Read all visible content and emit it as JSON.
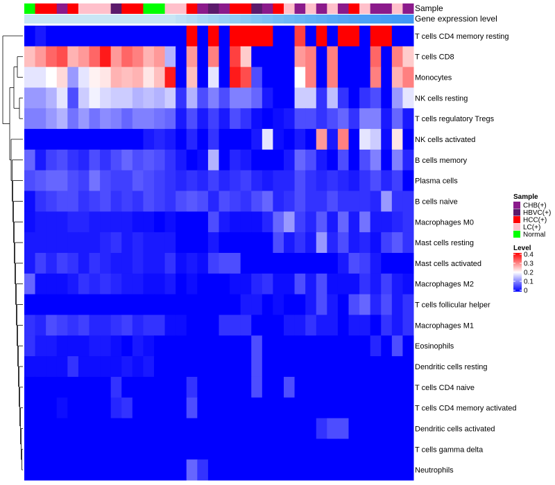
{
  "chart_data": {
    "type": "heatmap",
    "title": "",
    "annotation_labels": {
      "sample": "Sample",
      "gene_expression": "Gene expression level"
    },
    "sample_groups": [
      "CHB(+)",
      "HBVC(+)",
      "HCC(+)",
      "LC(+)",
      "Normal"
    ],
    "group_colors": {
      "CHB(+)": "#8B1A8B",
      "HBVC(+)": "#5B1A6B",
      "HCC(+)": "#FF0000",
      "LC(+)": "#FFC0CB",
      "Normal": "#00FF00"
    },
    "columns_sample": [
      "Normal",
      "HCC(+)",
      "HCC(+)",
      "CHB(+)",
      "HCC(+)",
      "LC(+)",
      "LC(+)",
      "LC(+)",
      "HBVC(+)",
      "HCC(+)",
      "HCC(+)",
      "Normal",
      "Normal",
      "LC(+)",
      "LC(+)",
      "HCC(+)",
      "CHB(+)",
      "HBVC(+)",
      "CHB(+)",
      "HCC(+)",
      "HCC(+)",
      "HBVC(+)",
      "CHB(+)",
      "HCC(+)",
      "LC(+)",
      "CHB(+)",
      "LC(+)",
      "CHB(+)",
      "LC(+)",
      "CHB(+)",
      "HCC(+)",
      "LC(+)",
      "CHB(+)",
      "CHB(+)",
      "LC(+)",
      "CHB(+)"
    ],
    "expression_colors": [
      "#C8E6F5",
      "#C8E6F5",
      "#C8E6F5",
      "#C8E6F5",
      "#C8E6F5",
      "#C8E6F5",
      "#C8E6F5",
      "#C8E6F5",
      "#C8E6F5",
      "#C8E6F5",
      "#C8E6F5",
      "#C8E6F5",
      "#C8E6F5",
      "#C8E6F5",
      "#BFE0F5",
      "#B5DCF5",
      "#AAD8F5",
      "#A2D4F5",
      "#9AD0F5",
      "#92CCF5",
      "#8AC8F5",
      "#82C4F5",
      "#7BC0F5",
      "#74BCF5",
      "#6EB8F5",
      "#68B4F5",
      "#62B0F5",
      "#5DACF5",
      "#58A8F5",
      "#54A4F5",
      "#50A2F5",
      "#4CA0F5",
      "#489EF5",
      "#459CF5",
      "#429AF5",
      "#4098F5"
    ],
    "rows": [
      "T cells CD4 memory resting",
      "T cells CD8",
      "Monocytes",
      "NK cells resting",
      "T cells regulatory  Tregs",
      "NK cells activated",
      "B cells memory",
      "Plasma cells",
      "B cells naive",
      "Macrophages M0",
      "Mast cells resting",
      "Mast cells activated",
      "Macrophages M2",
      "T cells follicular helper",
      "Macrophages M1",
      "Eosinophils",
      "Dendritic cells resting",
      "T cells CD4 naive",
      "T cells CD4 memory activated",
      "Dendritic cells activated",
      "T cells gamma delta",
      "Neutrophils"
    ],
    "values": [
      [
        0.0,
        0.02,
        0.0,
        0.0,
        0.0,
        0.0,
        0.0,
        0.0,
        0.0,
        0.0,
        0.0,
        0.0,
        0.0,
        0.0,
        0.0,
        0.4,
        0.0,
        0.4,
        0.0,
        0.4,
        0.4,
        0.4,
        0.4,
        0.0,
        0.0,
        0.35,
        0.0,
        0.4,
        0.0,
        0.4,
        0.4,
        0.0,
        0.4,
        0.4,
        0.0,
        0.0
      ],
      [
        0.25,
        0.28,
        0.32,
        0.34,
        0.26,
        0.28,
        0.32,
        0.38,
        0.28,
        0.32,
        0.3,
        0.26,
        0.28,
        0.14,
        0.0,
        0.28,
        0.0,
        0.3,
        0.0,
        0.35,
        0.24,
        0.0,
        0.0,
        0.0,
        0.0,
        0.28,
        0.3,
        0.0,
        0.3,
        0.0,
        0.0,
        0.0,
        0.32,
        0.0,
        0.3,
        0.24
      ],
      [
        0.18,
        0.18,
        0.2,
        0.23,
        0.12,
        0.18,
        0.21,
        0.22,
        0.26,
        0.25,
        0.26,
        0.22,
        0.25,
        0.38,
        0.0,
        0.25,
        0.0,
        0.18,
        0.0,
        0.38,
        0.34,
        0.06,
        0.0,
        0.0,
        0.0,
        0.2,
        0.3,
        0.0,
        0.3,
        0.0,
        0.0,
        0.0,
        0.3,
        0.0,
        0.26,
        0.3
      ],
      [
        0.12,
        0.12,
        0.14,
        0.18,
        0.06,
        0.16,
        0.19,
        0.17,
        0.16,
        0.16,
        0.14,
        0.15,
        0.14,
        0.16,
        0.04,
        0.14,
        0.06,
        0.1,
        0.06,
        0.1,
        0.1,
        0.08,
        0.02,
        0.0,
        0.0,
        0.16,
        0.16,
        0.04,
        0.15,
        0.04,
        0.0,
        0.04,
        0.06,
        0.0,
        0.12,
        0.18
      ],
      [
        0.1,
        0.1,
        0.12,
        0.14,
        0.09,
        0.12,
        0.09,
        0.11,
        0.1,
        0.08,
        0.1,
        0.1,
        0.09,
        0.08,
        0.02,
        0.06,
        0.02,
        0.05,
        0.02,
        0.06,
        0.04,
        0.01,
        0.0,
        0.01,
        0.02,
        0.06,
        0.06,
        0.04,
        0.06,
        0.08,
        0.04,
        0.1,
        0.1,
        0.02,
        0.08,
        0.02
      ],
      [
        0.0,
        0.0,
        0.0,
        0.0,
        0.0,
        0.0,
        0.0,
        0.0,
        0.0,
        0.0,
        0.0,
        0.02,
        0.03,
        0.02,
        0.0,
        0.03,
        0.0,
        0.04,
        0.0,
        0.0,
        0.0,
        0.02,
        0.18,
        0.01,
        0.0,
        0.02,
        0.0,
        0.28,
        0.02,
        0.3,
        0.0,
        0.18,
        0.16,
        0.01,
        0.22,
        0.0
      ],
      [
        0.08,
        0.02,
        0.05,
        0.06,
        0.04,
        0.03,
        0.06,
        0.04,
        0.06,
        0.08,
        0.06,
        0.07,
        0.06,
        0.04,
        0.02,
        0.0,
        0.01,
        0.14,
        0.0,
        0.03,
        0.02,
        0.0,
        0.0,
        0.0,
        0.02,
        0.08,
        0.06,
        0.02,
        0.0,
        0.06,
        0.0,
        0.06,
        0.1,
        0.0,
        0.1,
        0.03
      ],
      [
        0.06,
        0.07,
        0.08,
        0.08,
        0.06,
        0.05,
        0.09,
        0.06,
        0.05,
        0.05,
        0.07,
        0.06,
        0.05,
        0.04,
        0.03,
        0.04,
        0.03,
        0.05,
        0.03,
        0.04,
        0.05,
        0.03,
        0.02,
        0.03,
        0.03,
        0.06,
        0.04,
        0.03,
        0.04,
        0.03,
        0.02,
        0.04,
        0.06,
        0.03,
        0.05,
        0.0
      ],
      [
        0.01,
        0.04,
        0.05,
        0.06,
        0.06,
        0.04,
        0.05,
        0.06,
        0.04,
        0.05,
        0.04,
        0.06,
        0.05,
        0.04,
        0.06,
        0.07,
        0.06,
        0.03,
        0.06,
        0.05,
        0.04,
        0.06,
        0.08,
        0.03,
        0.04,
        0.06,
        0.04,
        0.04,
        0.06,
        0.04,
        0.04,
        0.04,
        0.03,
        0.12,
        0.04,
        0.04
      ],
      [
        0.01,
        0.02,
        0.02,
        0.02,
        0.03,
        0.03,
        0.02,
        0.02,
        0.02,
        0.02,
        0.01,
        0.01,
        0.0,
        0.01,
        0.0,
        0.0,
        0.0,
        0.06,
        0.02,
        0.01,
        0.01,
        0.01,
        0.03,
        0.08,
        0.12,
        0.05,
        0.03,
        0.07,
        0.02,
        0.08,
        0.02,
        0.09,
        0.02,
        0.02,
        0.03,
        0.04
      ],
      [
        0.02,
        0.02,
        0.02,
        0.02,
        0.02,
        0.02,
        0.02,
        0.03,
        0.04,
        0.02,
        0.03,
        0.02,
        0.02,
        0.02,
        0.0,
        0.0,
        0.0,
        0.02,
        0.0,
        0.0,
        0.0,
        0.0,
        0.0,
        0.06,
        0.02,
        0.04,
        0.02,
        0.12,
        0.03,
        0.06,
        0.02,
        0.03,
        0.01,
        0.05,
        0.07,
        0.04
      ],
      [
        0.02,
        0.05,
        0.03,
        0.05,
        0.04,
        0.02,
        0.04,
        0.03,
        0.02,
        0.02,
        0.03,
        0.02,
        0.02,
        0.04,
        0.01,
        0.02,
        0.01,
        0.05,
        0.06,
        0.06,
        0.0,
        0.0,
        0.0,
        0.0,
        0.0,
        0.0,
        0.0,
        0.0,
        0.0,
        0.02,
        0.06,
        0.05,
        0.02,
        0.0,
        0.0,
        0.0
      ],
      [
        0.08,
        0.01,
        0.01,
        0.01,
        0.02,
        0.04,
        0.03,
        0.04,
        0.03,
        0.02,
        0.02,
        0.01,
        0.01,
        0.02,
        0.0,
        0.01,
        0.0,
        0.0,
        0.0,
        0.01,
        0.01,
        0.03,
        0.04,
        0.01,
        0.01,
        0.06,
        0.02,
        0.06,
        0.01,
        0.01,
        0.01,
        0.04,
        0.02,
        0.05,
        0.02,
        0.01
      ],
      [
        0.0,
        0.0,
        0.0,
        0.0,
        0.0,
        0.0,
        0.0,
        0.0,
        0.0,
        0.0,
        0.0,
        0.0,
        0.0,
        0.0,
        0.0,
        0.0,
        0.0,
        0.0,
        0.0,
        0.0,
        0.02,
        0.02,
        0.0,
        0.01,
        0.0,
        0.0,
        0.02,
        0.06,
        0.02,
        0.0,
        0.06,
        0.08,
        0.03,
        0.06,
        0.02,
        0.04
      ],
      [
        0.04,
        0.03,
        0.06,
        0.05,
        0.04,
        0.05,
        0.03,
        0.03,
        0.04,
        0.05,
        0.03,
        0.04,
        0.04,
        0.01,
        0.01,
        0.0,
        0.0,
        0.0,
        0.04,
        0.04,
        0.04,
        0.0,
        0.0,
        0.0,
        0.02,
        0.02,
        0.04,
        0.02,
        0.02,
        0.0,
        0.02,
        0.02,
        0.0,
        0.04,
        0.02,
        0.04
      ],
      [
        0.04,
        0.02,
        0.02,
        0.01,
        0.01,
        0.01,
        0.02,
        0.02,
        0.01,
        0.0,
        0.02,
        0.01,
        0.0,
        0.0,
        0.0,
        0.0,
        0.0,
        0.0,
        0.0,
        0.0,
        0.0,
        0.06,
        0.0,
        0.0,
        0.0,
        0.0,
        0.0,
        0.0,
        0.0,
        0.0,
        0.0,
        0.0,
        0.03,
        0.0,
        0.06,
        0.0
      ],
      [
        0.01,
        0.01,
        0.01,
        0.01,
        0.04,
        0.01,
        0.01,
        0.01,
        0.01,
        0.02,
        0.01,
        0.02,
        0.0,
        0.0,
        0.0,
        0.0,
        0.0,
        0.0,
        0.0,
        0.0,
        0.0,
        0.06,
        0.0,
        0.0,
        0.0,
        0.0,
        0.0,
        0.0,
        0.0,
        0.0,
        0.0,
        0.0,
        0.0,
        0.0,
        0.0,
        0.0
      ],
      [
        0.0,
        0.0,
        0.0,
        0.0,
        0.0,
        0.0,
        0.0,
        0.0,
        0.04,
        0.0,
        0.0,
        0.0,
        0.0,
        0.0,
        0.0,
        0.04,
        0.0,
        0.0,
        0.0,
        0.0,
        0.0,
        0.06,
        0.0,
        0.0,
        0.06,
        0.0,
        0.0,
        0.0,
        0.0,
        0.0,
        0.0,
        0.0,
        0.0,
        0.0,
        0.0,
        0.0
      ],
      [
        0.0,
        0.0,
        0.0,
        0.01,
        0.0,
        0.0,
        0.0,
        0.0,
        0.03,
        0.04,
        0.0,
        0.0,
        0.0,
        0.0,
        0.0,
        0.06,
        0.0,
        0.0,
        0.0,
        0.0,
        0.0,
        0.0,
        0.0,
        0.0,
        0.0,
        0.0,
        0.0,
        0.0,
        0.0,
        0.0,
        0.0,
        0.0,
        0.0,
        0.0,
        0.0,
        0.0
      ],
      [
        0.0,
        0.0,
        0.0,
        0.0,
        0.0,
        0.0,
        0.0,
        0.0,
        0.0,
        0.0,
        0.0,
        0.0,
        0.0,
        0.0,
        0.0,
        0.0,
        0.0,
        0.0,
        0.0,
        0.0,
        0.0,
        0.0,
        0.0,
        0.0,
        0.0,
        0.0,
        0.0,
        0.04,
        0.06,
        0.06,
        0.0,
        0.0,
        0.0,
        0.0,
        0.0,
        0.0
      ],
      [
        0.0,
        0.0,
        0.0,
        0.0,
        0.0,
        0.0,
        0.0,
        0.0,
        0.0,
        0.0,
        0.0,
        0.0,
        0.0,
        0.0,
        0.0,
        0.0,
        0.0,
        0.0,
        0.0,
        0.0,
        0.0,
        0.0,
        0.0,
        0.0,
        0.0,
        0.0,
        0.0,
        0.0,
        0.0,
        0.0,
        0.0,
        0.0,
        0.0,
        0.0,
        0.0,
        0.0
      ],
      [
        0.0,
        0.0,
        0.0,
        0.0,
        0.0,
        0.0,
        0.0,
        0.0,
        0.0,
        0.0,
        0.0,
        0.0,
        0.0,
        0.0,
        0.0,
        0.08,
        0.04,
        0.0,
        0.0,
        0.0,
        0.0,
        0.0,
        0.0,
        0.0,
        0.0,
        0.0,
        0.0,
        0.0,
        0.0,
        0.0,
        0.0,
        0.0,
        0.0,
        0.0,
        0.0,
        0.0
      ]
    ],
    "color_scale": {
      "low": "#0000FF",
      "mid": "#FFFFFF",
      "high": "#FF0000",
      "min": 0,
      "max": 0.4
    },
    "legend": {
      "sample_title": "Sample",
      "level_title": "Level",
      "level_ticks": [
        "0.4",
        "0.3",
        "0.2",
        "0.1",
        "0"
      ]
    },
    "legend_position": "right",
    "row_dendrogram": "left"
  }
}
